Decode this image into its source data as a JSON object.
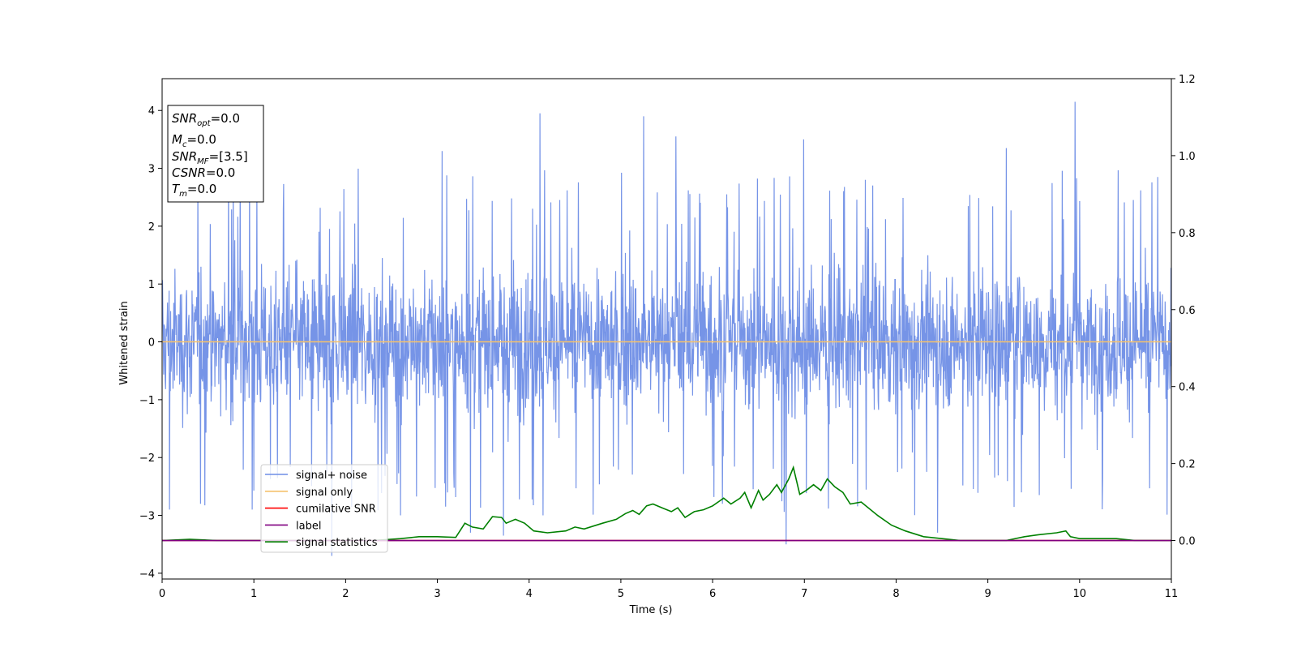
{
  "chart_data": {
    "type": "line",
    "xlabel": "Time (s)",
    "ylabel": "Whitened strain",
    "xlim": [
      0,
      11
    ],
    "ylim": [
      -4.1,
      4.55
    ],
    "y2lim": [
      -0.1,
      1.2
    ],
    "x_ticks": [
      0,
      1,
      2,
      3,
      4,
      5,
      6,
      7,
      8,
      9,
      10,
      11
    ],
    "y_ticks": [
      -4,
      -3,
      -2,
      -1,
      0,
      1,
      2,
      3,
      4
    ],
    "y2_ticks": [
      0.0,
      0.2,
      0.4,
      0.6,
      0.8,
      1.0,
      1.2
    ],
    "y2_tick_labels": [
      "0.0",
      "0.2",
      "0.4",
      "0.6",
      "0.8",
      "1.0",
      "1.2"
    ],
    "grid": false,
    "legend_position": "lower-left",
    "colors": {
      "signal_noise": "#6f8ee6",
      "signal_only": "#f5c16c",
      "cumulative_snr": "#ff0000",
      "label": "#800080",
      "signal_statistics": "#008000"
    },
    "series": [
      {
        "name": "signal+ noise",
        "axis": "left",
        "style": "dense noise",
        "envelope_typical": [
          -1.6,
          1.6
        ],
        "peaks": [
          {
            "x": 0.08,
            "y": -2.9
          },
          {
            "x": 0.42,
            "y": -2.8
          },
          {
            "x": 0.98,
            "y": -2.9
          },
          {
            "x": 1.85,
            "y": -3.7
          },
          {
            "x": 2.6,
            "y": -3.0
          },
          {
            "x": 3.05,
            "y": 3.3
          },
          {
            "x": 3.36,
            "y": -3.3
          },
          {
            "x": 3.72,
            "y": -3.35
          },
          {
            "x": 4.12,
            "y": 3.95
          },
          {
            "x": 4.15,
            "y": -3.0
          },
          {
            "x": 5.25,
            "y": 3.9
          },
          {
            "x": 5.6,
            "y": 3.55
          },
          {
            "x": 6.8,
            "y": -3.5
          },
          {
            "x": 6.99,
            "y": 3.5
          },
          {
            "x": 8.45,
            "y": -3.3
          },
          {
            "x": 9.95,
            "y": 4.15
          },
          {
            "x": 9.2,
            "y": 3.35
          },
          {
            "x": 10.85,
            "y": 2.85
          }
        ]
      },
      {
        "name": "signal only",
        "axis": "left",
        "x": [
          0,
          11
        ],
        "y": [
          0,
          0
        ]
      },
      {
        "name": "cumilative SNR",
        "axis": "right",
        "x": [
          0,
          11
        ],
        "y": [
          0,
          0
        ]
      },
      {
        "name": "label",
        "axis": "right",
        "x": [
          0,
          11
        ],
        "y": [
          0,
          0
        ]
      },
      {
        "name": "signal statistics",
        "axis": "right",
        "x": [
          0,
          0.3,
          0.6,
          1.0,
          1.5,
          2.0,
          2.3,
          2.6,
          2.8,
          3.0,
          3.2,
          3.3,
          3.38,
          3.5,
          3.6,
          3.7,
          3.75,
          3.85,
          3.95,
          4.05,
          4.2,
          4.4,
          4.5,
          4.6,
          4.8,
          4.95,
          5.05,
          5.13,
          5.2,
          5.28,
          5.35,
          5.45,
          5.55,
          5.62,
          5.7,
          5.8,
          5.9,
          6.0,
          6.12,
          6.2,
          6.3,
          6.35,
          6.42,
          6.5,
          6.55,
          6.62,
          6.7,
          6.75,
          6.83,
          6.88,
          6.95,
          7.02,
          7.1,
          7.18,
          7.25,
          7.33,
          7.42,
          7.5,
          7.62,
          7.8,
          7.95,
          8.1,
          8.3,
          8.5,
          8.7,
          9.0,
          9.2,
          9.4,
          9.55,
          9.75,
          9.85,
          9.9,
          10.0,
          10.2,
          10.4,
          10.6,
          10.8,
          11.0
        ],
        "y": [
          0.0,
          0.003,
          0.0,
          0.0,
          0.0,
          0.0,
          0.0,
          0.005,
          0.01,
          0.01,
          0.008,
          0.045,
          0.035,
          0.03,
          0.062,
          0.06,
          0.045,
          0.055,
          0.045,
          0.025,
          0.02,
          0.025,
          0.035,
          0.03,
          0.045,
          0.055,
          0.07,
          0.078,
          0.068,
          0.09,
          0.095,
          0.085,
          0.075,
          0.085,
          0.06,
          0.075,
          0.08,
          0.09,
          0.11,
          0.095,
          0.11,
          0.125,
          0.085,
          0.13,
          0.105,
          0.12,
          0.145,
          0.125,
          0.16,
          0.19,
          0.12,
          0.13,
          0.145,
          0.13,
          0.16,
          0.14,
          0.125,
          0.095,
          0.1,
          0.065,
          0.04,
          0.025,
          0.01,
          0.005,
          0.0,
          0.0,
          0.0,
          0.01,
          0.015,
          0.02,
          0.025,
          0.01,
          0.005,
          0.005,
          0.005,
          0.0,
          0.0,
          0.0
        ]
      }
    ]
  },
  "stats_box": {
    "snr_opt": {
      "base": "SNR",
      "sub": "opt",
      "value": "=0.0"
    },
    "mc": {
      "base": "M",
      "sub": "c",
      "value": "=0.0"
    },
    "snr_mf": {
      "base": "SNR",
      "sub": "MF",
      "value": "=[3.5]"
    },
    "csnr": {
      "base": "CSNR",
      "value": "=0.0"
    },
    "tm": {
      "base": "T",
      "sub": "m",
      "value": "=0.0"
    }
  }
}
